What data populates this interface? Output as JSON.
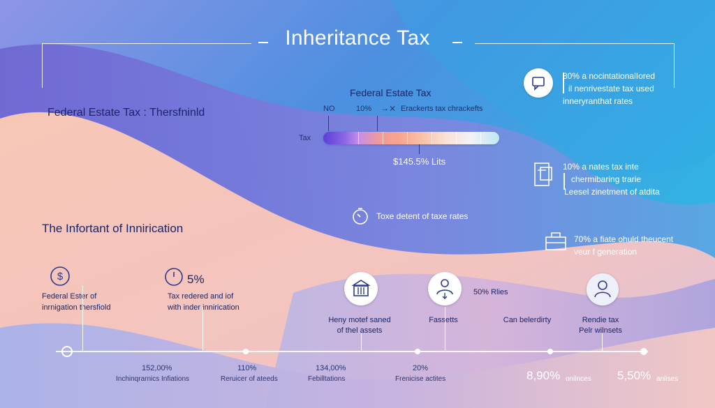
{
  "header": {
    "title": "Inheritance Tax"
  },
  "left": {
    "heading": "Federal Estate Tax : Thersfninld",
    "subheading": "The Infortant of Innirication"
  },
  "center": {
    "heading": "Federal Estate Tax",
    "bar_labels": {
      "no": "NO",
      "ten": "10%",
      "arrow_note": "Erackerts tax chrackefts",
      "tax": "Tax",
      "value": "$145.5% Lits"
    },
    "clock_caption": "Toxe detent of taxe rates"
  },
  "right": {
    "note1_line1": "80% a nocintationalIored",
    "note1_line2": "il nenrivestate tax used",
    "note1_line3": "inneryranthat rates",
    "note2_line1": "10% a nates tax inte",
    "note2_line2": "chermibaring trarie",
    "note2_line3": "Leesel zinetment of atdita",
    "note3_line1": "70% a fiate ohuld theucent",
    "note3_line2": "veur f generation"
  },
  "middle": {
    "item1_line1": "Federal Ester of",
    "item1_line2": "inrnigation thersfiold",
    "pct_head": "5%",
    "item2_line1": "Tax redered and iof",
    "item2_line2": "with inder innirication",
    "col1_line1": "Heny motef saned",
    "col1_line2": "of thel assets",
    "col2": "Fassetts",
    "col2_pct": "50% Rlies",
    "col3": "Can belerdirty",
    "col4_line1": "Rendie tax",
    "col4_line2": "Pelr wilnsets"
  },
  "bottom": {
    "n1": "152,00%",
    "l1": "Inchinqrarnics Infiations",
    "n2": "110%",
    "l2": "Reruicer of ateeds",
    "n3": "134,00%",
    "l3": "Febilltations",
    "n4": "20%",
    "l4": "Frenicise actites",
    "n5": "8,90%",
    "l5": "onilnces",
    "n6": "5,50%",
    "l6": "anlises"
  },
  "icons": [
    "dollar-icon",
    "clock-icon",
    "bank-icon",
    "family-icon",
    "person-icon",
    "chat-icon",
    "document-icon",
    "briefcase-icon",
    "stopwatch-icon"
  ],
  "colors": {
    "bg_blue": "#3f8bd8",
    "bg_purple": "#7a78d8",
    "bg_peach": "#f8c9b4",
    "text_dark": "#1c2566"
  }
}
